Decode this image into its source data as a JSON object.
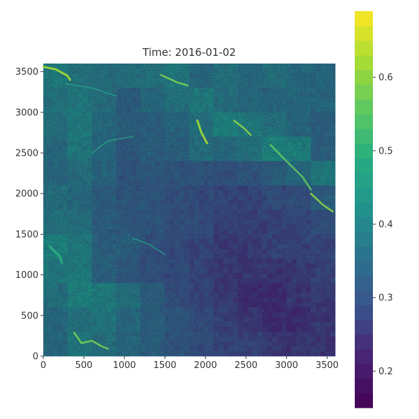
{
  "chart_data": {
    "type": "heatmap",
    "title": "Time: 2016-01-02",
    "xlabel": "",
    "ylabel": "",
    "xlim": [
      0,
      3600
    ],
    "ylim": [
      0,
      3600
    ],
    "x_ticks": [
      0,
      500,
      1000,
      1500,
      2000,
      2500,
      3000,
      3500
    ],
    "y_ticks": [
      0,
      500,
      1000,
      1500,
      2000,
      2500,
      3000,
      3500
    ],
    "colorbar": {
      "range": [
        0.15,
        0.69
      ],
      "ticks": [
        0.2,
        0.3,
        0.4,
        0.5,
        0.6
      ],
      "tick_labels": [
        "0.2",
        "0.3",
        "0.4",
        "0.5",
        "0.6"
      ],
      "colormap": "viridis",
      "levels": 27
    },
    "grid": false,
    "tile_grid": {
      "cols": 12,
      "rows": 12,
      "note_values": "approximate mean value per tile, row 0 = top (y≈3600)",
      "values": [
        [
          0.4,
          0.38,
          0.37,
          0.37,
          0.38,
          0.39,
          0.36,
          0.38,
          0.36,
          0.37,
          0.36,
          0.35
        ],
        [
          0.38,
          0.39,
          0.37,
          0.33,
          0.36,
          0.38,
          0.4,
          0.37,
          0.36,
          0.35,
          0.36,
          0.35
        ],
        [
          0.37,
          0.4,
          0.36,
          0.33,
          0.34,
          0.35,
          0.38,
          0.42,
          0.4,
          0.38,
          0.35,
          0.34
        ],
        [
          0.36,
          0.39,
          0.36,
          0.32,
          0.33,
          0.34,
          0.37,
          0.36,
          0.38,
          0.42,
          0.41,
          0.34
        ],
        [
          0.35,
          0.37,
          0.35,
          0.31,
          0.32,
          0.31,
          0.31,
          0.3,
          0.31,
          0.33,
          0.36,
          0.4
        ],
        [
          0.37,
          0.36,
          0.33,
          0.31,
          0.31,
          0.3,
          0.29,
          0.28,
          0.28,
          0.29,
          0.3,
          0.33
        ],
        [
          0.38,
          0.37,
          0.33,
          0.32,
          0.31,
          0.3,
          0.29,
          0.27,
          0.27,
          0.27,
          0.28,
          0.3
        ],
        [
          0.41,
          0.4,
          0.34,
          0.33,
          0.3,
          0.29,
          0.28,
          0.26,
          0.26,
          0.27,
          0.27,
          0.28
        ],
        [
          0.39,
          0.4,
          0.34,
          0.32,
          0.3,
          0.29,
          0.27,
          0.26,
          0.25,
          0.25,
          0.26,
          0.27
        ],
        [
          0.37,
          0.41,
          0.4,
          0.37,
          0.33,
          0.3,
          0.28,
          0.26,
          0.24,
          0.24,
          0.25,
          0.26
        ],
        [
          0.36,
          0.38,
          0.39,
          0.36,
          0.33,
          0.31,
          0.29,
          0.27,
          0.25,
          0.24,
          0.24,
          0.25
        ],
        [
          0.36,
          0.39,
          0.37,
          0.35,
          0.33,
          0.31,
          0.29,
          0.28,
          0.27,
          0.26,
          0.25,
          0.25
        ]
      ]
    }
  }
}
